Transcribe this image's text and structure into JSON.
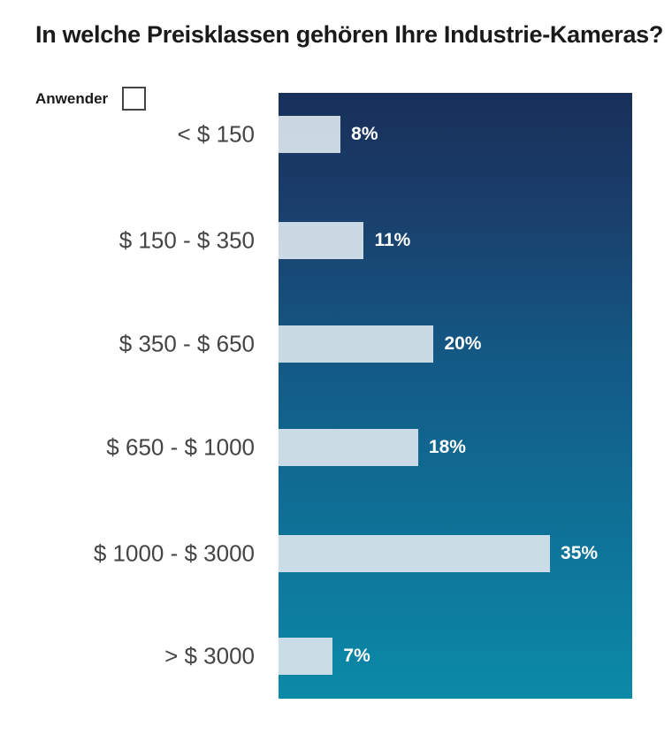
{
  "chart_data": {
    "type": "bar",
    "orientation": "horizontal",
    "title": "In welche Preisklassen gehören Ihre Industrie-Kameras?",
    "legend": [
      {
        "name": "Anwender",
        "placement": "top-left"
      }
    ],
    "categories": [
      "< $ 150",
      "$ 150 - $ 350",
      "$ 350 - $ 650",
      "$ 650 - $ 1000",
      "$ 1000 - $ 3000",
      "> $ 3000"
    ],
    "values": [
      8,
      11,
      20,
      18,
      35,
      7
    ],
    "value_labels": [
      "8%",
      "11%",
      "20%",
      "18%",
      "35%",
      "7%"
    ],
    "unit": "%",
    "xlim": [
      0,
      45.6
    ],
    "grid": false,
    "colors": {
      "bar": "#d8e4ec",
      "background_top": "#18305a",
      "background_bottom": "#0b8aa8"
    }
  }
}
